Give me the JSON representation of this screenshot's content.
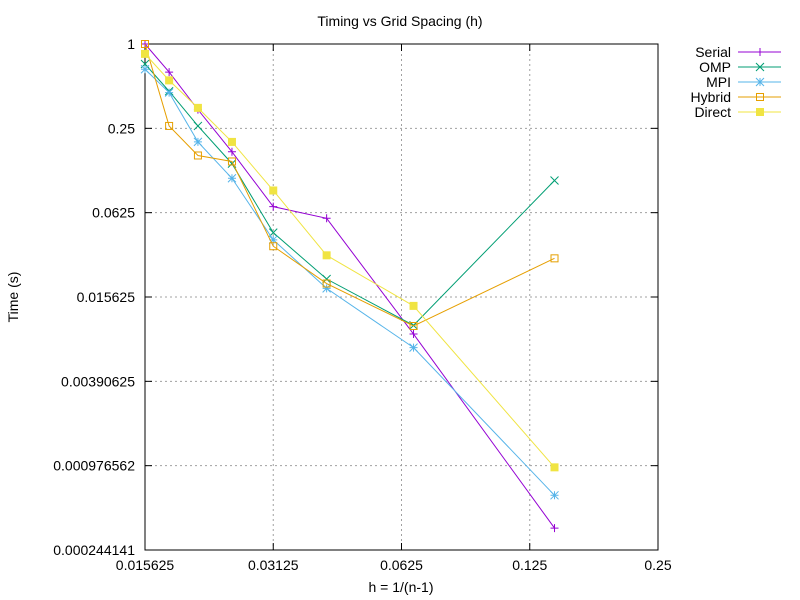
{
  "chart_data": {
    "type": "line",
    "title": "Timing vs Grid Spacing (h)",
    "xlabel": "h = 1/(n-1)",
    "ylabel": "Time (s)",
    "xscale": "log2",
    "yscale": "log2",
    "xlim": [
      0.015625,
      0.25
    ],
    "ylim": [
      0.000244141,
      1
    ],
    "xticks": [
      0.015625,
      0.03125,
      0.0625,
      0.125,
      0.25
    ],
    "xtick_labels": [
      "0.015625",
      "0.03125",
      "0.0625",
      "0.125",
      "0.25"
    ],
    "yticks": [
      1,
      0.25,
      0.0625,
      0.015625,
      0.00390625,
      0.000976562,
      0.000244141
    ],
    "ytick_labels": [
      "1",
      "0.25",
      "0.0625",
      "0.015625",
      "0.00390625",
      "0.000976562",
      "0.000244141"
    ],
    "grid": true,
    "legend_position": "outside-top-right",
    "series": [
      {
        "name": "Serial",
        "color": "#9400d3",
        "marker": "plus",
        "x": [
          0.015625,
          0.0178,
          0.0208,
          0.025,
          0.03125,
          0.0417,
          0.0667,
          0.1429
        ],
        "y": [
          1.0,
          0.63,
          0.34,
          0.17,
          0.069,
          0.057,
          0.0085,
          0.00035
        ]
      },
      {
        "name": "OMP",
        "color": "#009e73",
        "marker": "cross",
        "x": [
          0.015625,
          0.0178,
          0.0208,
          0.025,
          0.03125,
          0.0417,
          0.0667,
          0.1429
        ],
        "y": [
          0.72,
          0.46,
          0.26,
          0.14,
          0.045,
          0.021,
          0.0098,
          0.106
        ]
      },
      {
        "name": "MPI",
        "color": "#56b4e9",
        "marker": "asterisk",
        "x": [
          0.015625,
          0.0178,
          0.0208,
          0.025,
          0.03125,
          0.0417,
          0.0667,
          0.1429
        ],
        "y": [
          0.66,
          0.45,
          0.2,
          0.11,
          0.04,
          0.018,
          0.0068,
          0.0006
        ]
      },
      {
        "name": "Hybrid",
        "color": "#e69f00",
        "marker": "open-square",
        "x": [
          0.015625,
          0.0178,
          0.0208,
          0.025,
          0.03125,
          0.0417,
          0.0667,
          0.1429
        ],
        "y": [
          1.0,
          0.26,
          0.16,
          0.145,
          0.036,
          0.0195,
          0.0097,
          0.0295
        ]
      },
      {
        "name": "Direct",
        "color": "#f0e442",
        "marker": "filled-square",
        "x": [
          0.015625,
          0.0178,
          0.0208,
          0.025,
          0.03125,
          0.0417,
          0.0667,
          0.1429
        ],
        "y": [
          0.85,
          0.55,
          0.35,
          0.2,
          0.09,
          0.031,
          0.0135,
          0.00095
        ]
      }
    ]
  }
}
